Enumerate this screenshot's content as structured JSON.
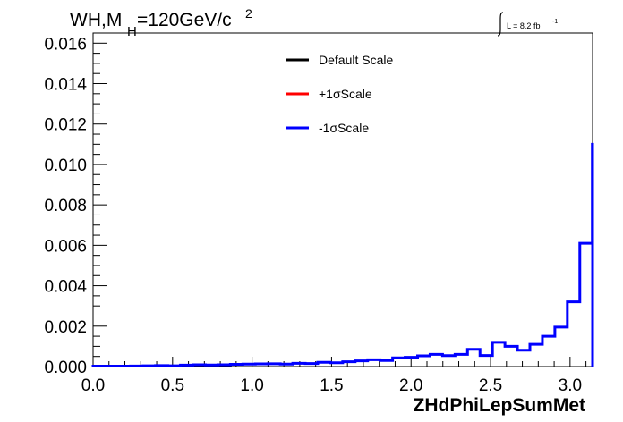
{
  "chart_data": {
    "type": "line",
    "title_main": "WH,M",
    "title_sub": "H",
    "title_rest": "=120GeV/c",
    "title_sup": "2",
    "lumi_text": "L = 8.2 fb",
    "lumi_sup": "-1",
    "xlabel": "ZHdPhiLepSumMet",
    "xlim": [
      0,
      3.1416
    ],
    "ylim": [
      0,
      0.0165
    ],
    "x_ticks": [
      "0.0",
      "0.5",
      "1.0",
      "1.5",
      "2.0",
      "2.5",
      "3.0"
    ],
    "x_tick_values": [
      0,
      0.5,
      1.0,
      1.5,
      2.0,
      2.5,
      3.0
    ],
    "y_ticks": [
      "0.000",
      "0.002",
      "0.004",
      "0.006",
      "0.008",
      "0.010",
      "0.012",
      "0.014",
      "0.016"
    ],
    "y_tick_values": [
      0,
      0.002,
      0.004,
      0.006,
      0.008,
      0.01,
      0.012,
      0.014,
      0.016
    ],
    "bin_width": 0.0785,
    "legend": [
      {
        "label": "Default Scale",
        "color": "#000000"
      },
      {
        "label": "+1σScale",
        "color": "#ff0000"
      },
      {
        "label": "-1σScale",
        "color": "#0000ff"
      }
    ],
    "series": [
      {
        "name": "-1σScale",
        "color": "#0000ff",
        "values": [
          2e-05,
          2e-05,
          2e-05,
          3e-05,
          4e-05,
          5e-05,
          4e-05,
          7e-05,
          9e-05,
          8e-05,
          9e-05,
          0.00011,
          0.00012,
          0.00013,
          0.00014,
          0.00012,
          0.00016,
          0.00015,
          0.00021,
          0.00019,
          0.00024,
          0.00028,
          0.00034,
          0.0003,
          0.00043,
          0.00046,
          0.00053,
          0.0006,
          0.00054,
          0.0006,
          0.00085,
          0.00055,
          0.0012,
          0.001,
          0.00081,
          0.0011,
          0.0015,
          0.00195,
          0.0032,
          0.0061,
          0.011
        ]
      }
    ]
  }
}
